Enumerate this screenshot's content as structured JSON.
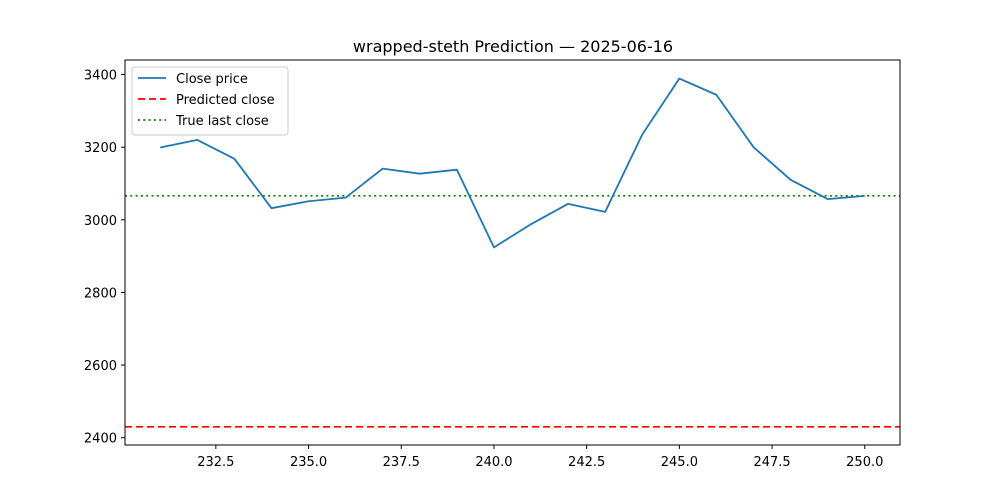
{
  "chart_data": {
    "type": "line",
    "title": "wrapped-steth Prediction — 2025-06-16",
    "xlabel": "",
    "ylabel": "",
    "xlim": [
      230.05,
      250.95
    ],
    "ylim": [
      2380,
      3440
    ],
    "x_ticks": [
      232.5,
      235.0,
      237.5,
      240.0,
      242.5,
      245.0,
      247.5,
      250.0
    ],
    "x_tick_labels": [
      "232.5",
      "235.0",
      "237.5",
      "240.0",
      "242.5",
      "245.0",
      "247.5",
      "250.0"
    ],
    "y_ticks": [
      2400,
      2600,
      2800,
      3000,
      3200,
      3400
    ],
    "y_tick_labels": [
      "2400",
      "2600",
      "2800",
      "3000",
      "3200",
      "3400"
    ],
    "grid": false,
    "legend_position": "top-left",
    "series": [
      {
        "name": "Close price",
        "style": "solid",
        "color": "#1f77b4",
        "x": [
          231,
          232,
          233,
          234,
          235,
          236,
          237,
          238,
          239,
          240,
          241,
          242,
          243,
          244,
          245,
          246,
          247,
          248,
          249,
          250
        ],
        "y": [
          3199,
          3220,
          3168,
          3032,
          3051,
          3061,
          3141,
          3127,
          3138,
          2924,
          2988,
          3044,
          3022,
          3235,
          3389,
          3344,
          3200,
          3110,
          3057,
          3066
        ]
      }
    ],
    "hlines": [
      {
        "name": "Predicted close",
        "value": 2430,
        "style": "dashed",
        "color": "#ff0000"
      },
      {
        "name": "True last close",
        "value": 3066,
        "style": "dotted",
        "color": "#008000"
      }
    ]
  }
}
